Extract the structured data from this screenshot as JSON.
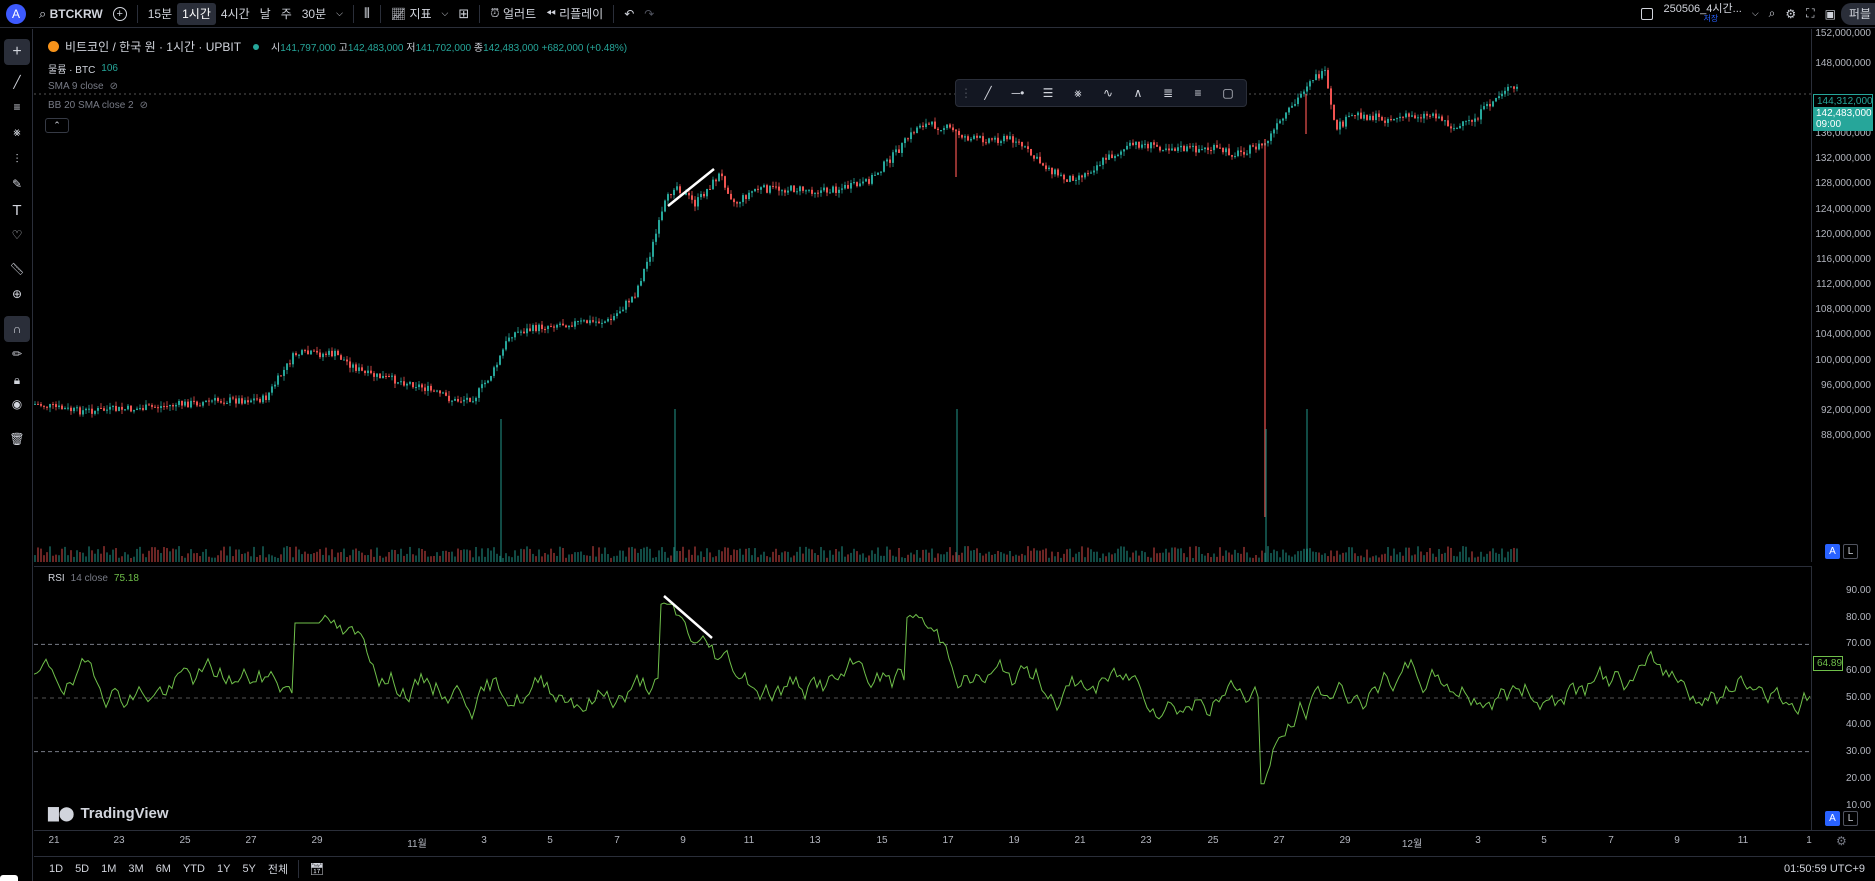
{
  "topbar": {
    "avatar": "A",
    "symbol": "BTCKRW",
    "intervals": [
      "15분",
      "1시간",
      "4시간",
      "날",
      "주",
      "30분"
    ],
    "active_interval": "1시간",
    "indicators_label": "지표",
    "alert_label": "얼러트",
    "replay_label": "리플레이",
    "layout_name": "250506_4시간...",
    "layout_sub": "저장",
    "publish_label": "퍼블"
  },
  "legend": {
    "title": "비트코인 / 한국 원 · 1시간 · UPBIT",
    "open_label": "시",
    "open": "141,797,000",
    "high_label": "고",
    "high": "142,483,000",
    "low_label": "저",
    "low": "141,702,000",
    "close_label": "종",
    "close": "142,483,000",
    "change": "+682,000 (+0.48%)",
    "volume_label": "물륨 · BTC",
    "volume": "106",
    "sma_label": "SMA 9 close",
    "bb_label": "BB 20 SMA close 2"
  },
  "rsi_legend": {
    "name": "RSI",
    "params": "14 close",
    "value": "75.18"
  },
  "price_axis": [
    "152,000,000",
    "148,000,000",
    "144,312,000",
    "142,483,000",
    "09:00",
    "136,000,000",
    "132,000,000",
    "128,000,000",
    "124,000,000",
    "120,000,000",
    "116,000,000",
    "112,000,000",
    "108,000,000",
    "104,000,000",
    "100,000,000",
    "96,000,000",
    "92,000,000",
    "88,000,000"
  ],
  "rsi_axis": [
    "90.00",
    "80.00",
    "70.00",
    "64.89",
    "60.00",
    "50.00",
    "40.00",
    "30.00",
    "20.00",
    "10.00"
  ],
  "time_axis": [
    "21",
    "23",
    "25",
    "27",
    "29",
    "11월",
    "3",
    "5",
    "7",
    "9",
    "11",
    "13",
    "15",
    "17",
    "19",
    "21",
    "23",
    "25",
    "27",
    "29",
    "12월",
    "3",
    "5",
    "7",
    "9",
    "11",
    "1"
  ],
  "bottombar": {
    "ranges": [
      "1D",
      "5D",
      "1M",
      "3M",
      "6M",
      "YTD",
      "1Y",
      "5Y",
      "전체"
    ],
    "clock": "01:50:59 UTC+9"
  },
  "watermark": "TradingView",
  "colors": {
    "up": "#26a69a",
    "down": "#ef5350",
    "rsi": "#6fbf4a",
    "accent": "#2962ff"
  }
}
